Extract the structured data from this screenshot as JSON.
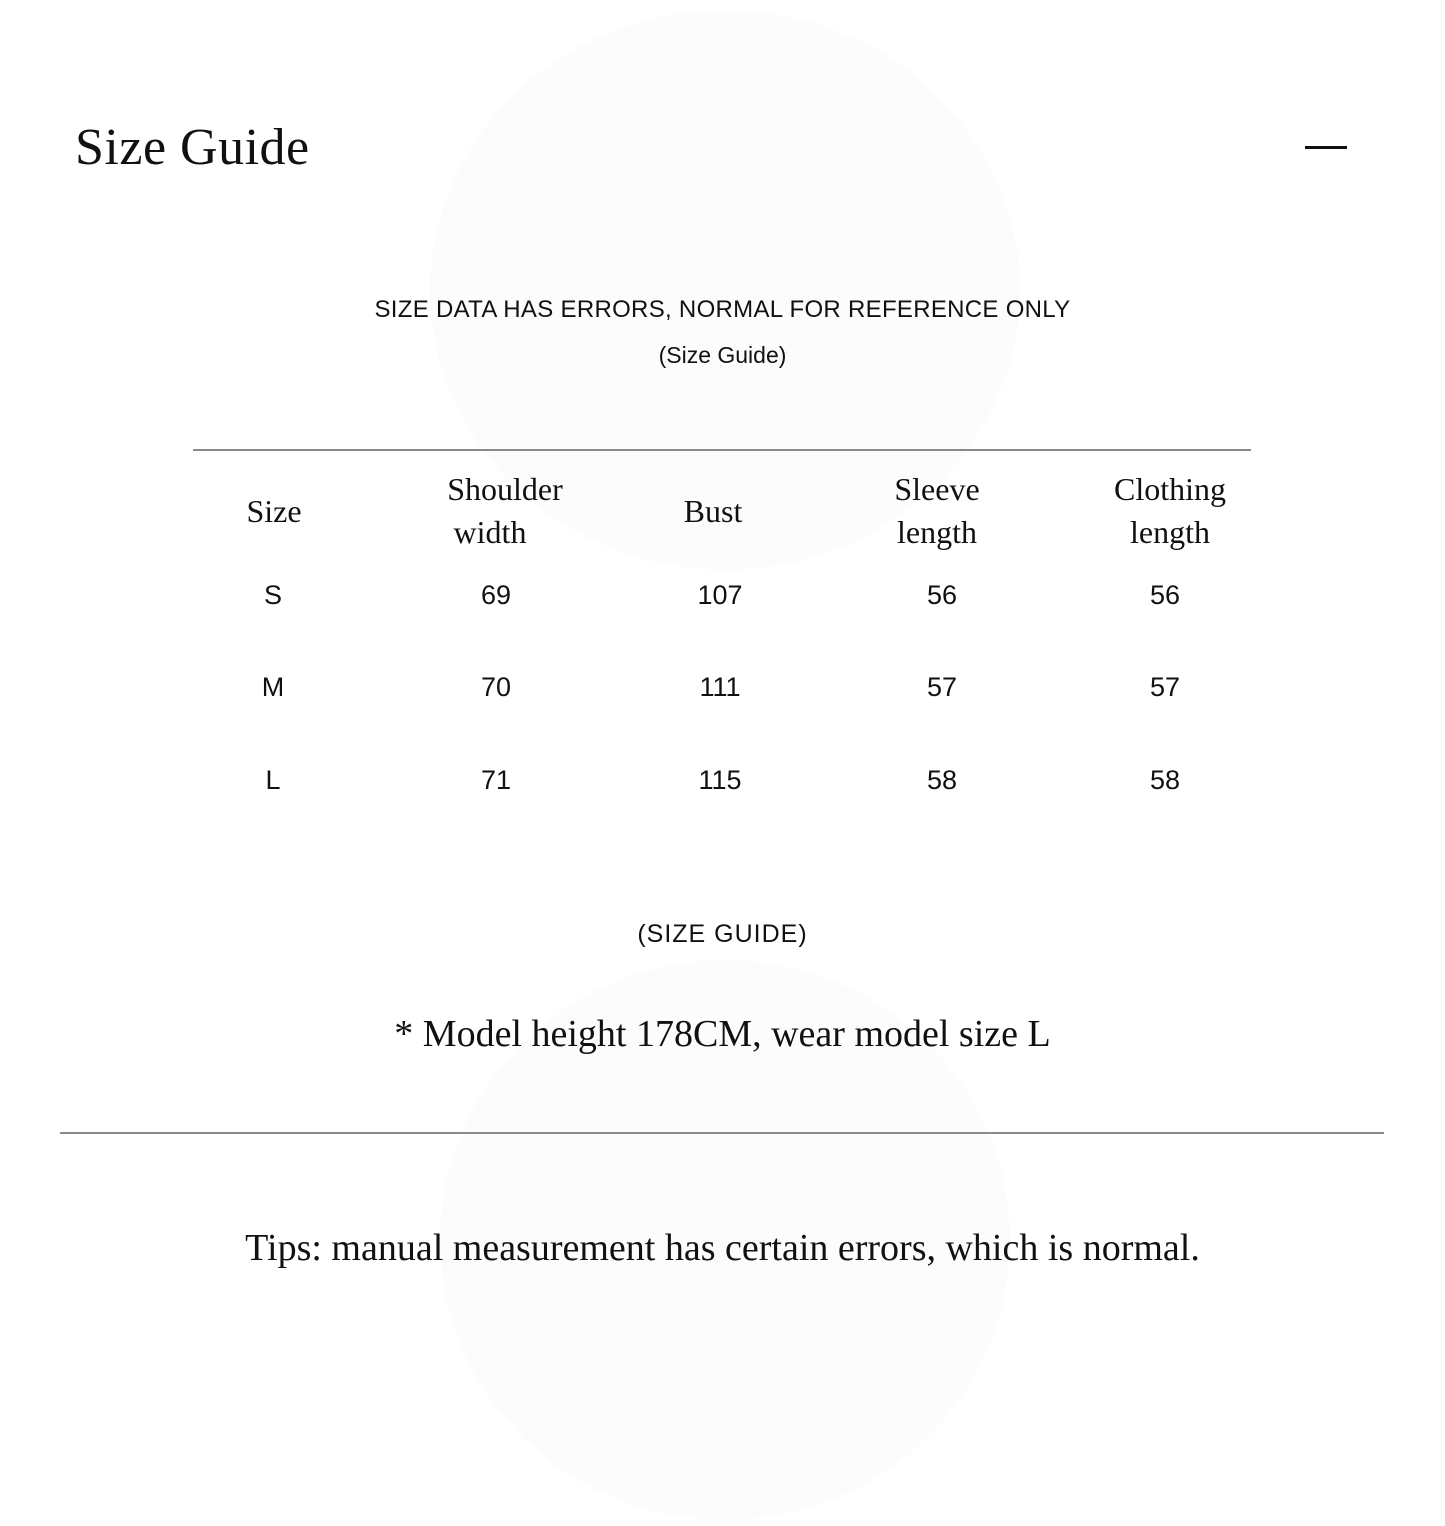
{
  "header": {
    "title": "Size Guide",
    "collapse_icon": "minus-icon"
  },
  "notice": "SIZE DATA HAS ERRORS, NORMAL FOR REFERENCE ONLY",
  "subtitle": "(Size Guide)",
  "table": {
    "headers": [
      [
        "Size",
        ""
      ],
      [
        "Shoulder",
        "width"
      ],
      [
        "Bust",
        ""
      ],
      [
        "Sleeve",
        "length"
      ],
      [
        "Clothing",
        "length"
      ]
    ],
    "rows": [
      [
        "S",
        "69",
        "107",
        "56",
        "56"
      ],
      [
        "M",
        "70",
        "111",
        "57",
        "57"
      ],
      [
        "L",
        "71",
        "115",
        "58",
        "58"
      ]
    ]
  },
  "section_label": "(SIZE GUIDE)",
  "model_note": "* Model height 178CM, wear model size L",
  "tips": "Tips: manual measurement has certain errors, which is normal."
}
